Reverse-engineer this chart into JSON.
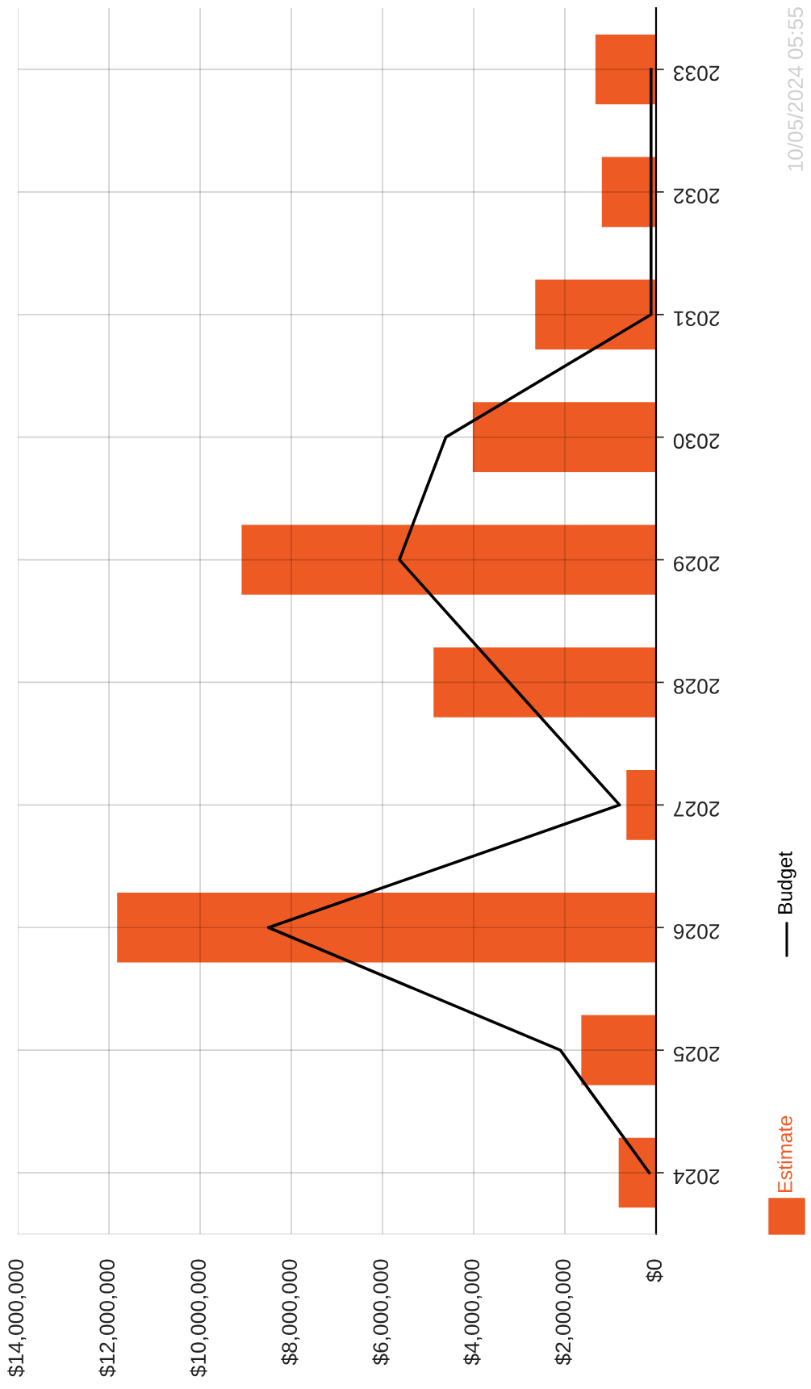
{
  "chart_data": {
    "type": "bar",
    "orientation": "horizontal",
    "categories": [
      "2033",
      "2032",
      "2031",
      "2030",
      "2029",
      "2028",
      "2027",
      "2026",
      "2025",
      "2024"
    ],
    "series": [
      {
        "name": "Estimate",
        "type": "bar",
        "color": "#ee5a24",
        "values": [
          1330000,
          1190000,
          2650000,
          4020000,
          9090000,
          4880000,
          650000,
          11820000,
          1640000,
          820000
        ]
      },
      {
        "name": "Budget",
        "type": "line",
        "color": "#000000",
        "values": [
          110000,
          110000,
          110000,
          4610000,
          5630000,
          3220000,
          800000,
          8500000,
          2100000,
          150000
        ]
      }
    ],
    "xlim": [
      14000000,
      0
    ],
    "xticks": [
      {
        "value": 14000000,
        "label": "$14,000,000"
      },
      {
        "value": 12000000,
        "label": "$12,000,000"
      },
      {
        "value": 10000000,
        "label": "$10,000,000"
      },
      {
        "value": 8000000,
        "label": "$8,000,000"
      },
      {
        "value": 6000000,
        "label": "$6,000,000"
      },
      {
        "value": 4000000,
        "label": "$4,000,000"
      },
      {
        "value": 2000000,
        "label": "$2,000,000"
      },
      {
        "value": 0,
        "label": "$0"
      }
    ],
    "grid": true,
    "legend": "right",
    "marker": "none",
    "line_style": "solid",
    "annotations": [
      "10/05/2024 05:55"
    ]
  }
}
